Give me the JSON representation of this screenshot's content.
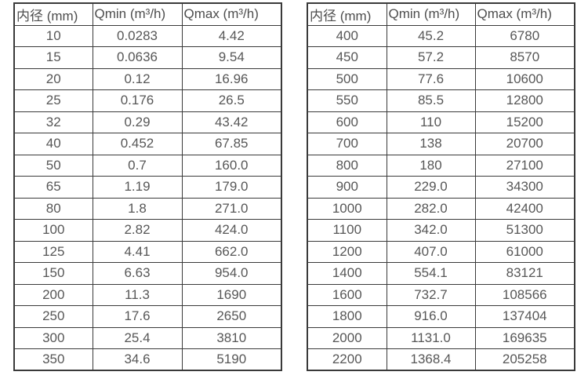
{
  "colors": {
    "border": "#3a3a3a",
    "text": "#575757",
    "header_text": "#4d4d4d",
    "background": "#ffffff"
  },
  "chart_data": [
    {
      "type": "table",
      "title": "",
      "headers": [
        "内径 (mm)",
        "Qmin (m³/h)",
        "Qmax (m³/h)"
      ],
      "rows": [
        [
          "10",
          "0.0283",
          "4.42"
        ],
        [
          "15",
          "0.0636",
          "9.54"
        ],
        [
          "20",
          "0.12",
          "16.96"
        ],
        [
          "25",
          "0.176",
          "26.5"
        ],
        [
          "32",
          "0.29",
          "43.42"
        ],
        [
          "40",
          "0.452",
          "67.85"
        ],
        [
          "50",
          "0.7",
          "160.0"
        ],
        [
          "65",
          "1.19",
          "179.0"
        ],
        [
          "80",
          "1.8",
          "271.0"
        ],
        [
          "100",
          "2.82",
          "424.0"
        ],
        [
          "125",
          "4.41",
          "662.0"
        ],
        [
          "150",
          "6.63",
          "954.0"
        ],
        [
          "200",
          "11.3",
          "1690"
        ],
        [
          "250",
          "17.6",
          "2650"
        ],
        [
          "300",
          "25.4",
          "3810"
        ],
        [
          "350",
          "34.6",
          "5190"
        ]
      ]
    },
    {
      "type": "table",
      "title": "",
      "headers": [
        "内径 (mm)",
        "Qmin (m³/h)",
        "Qmax (m³/h)"
      ],
      "rows": [
        [
          "400",
          "45.2",
          "6780"
        ],
        [
          "450",
          "57.2",
          "8570"
        ],
        [
          "500",
          "77.6",
          "10600"
        ],
        [
          "550",
          "85.5",
          "12800"
        ],
        [
          "600",
          "110",
          "15200"
        ],
        [
          "700",
          "138",
          "20700"
        ],
        [
          "800",
          "180",
          "27100"
        ],
        [
          "900",
          "229.0",
          "34300"
        ],
        [
          "1000",
          "282.0",
          "42400"
        ],
        [
          "1100",
          "342.0",
          "51300"
        ],
        [
          "1200",
          "407.0",
          "61000"
        ],
        [
          "1400",
          "554.1",
          "83121"
        ],
        [
          "1600",
          "732.7",
          "108566"
        ],
        [
          "1800",
          "916.0",
          "137404"
        ],
        [
          "2000",
          "1131.0",
          "169635"
        ],
        [
          "2200",
          "1368.4",
          "205258"
        ]
      ]
    }
  ]
}
